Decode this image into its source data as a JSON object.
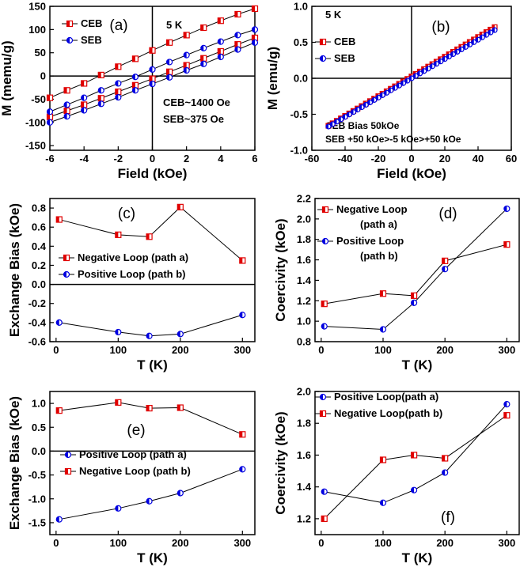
{
  "chart_data": [
    {
      "id": "a",
      "type": "line",
      "panel_label": "(a)",
      "xlabel": "Field (kOe)",
      "ylabel": "M (memu/g)",
      "xlim": [
        -6,
        6
      ],
      "ylim": [
        -160,
        150
      ],
      "xticks": [
        "-6",
        "-4",
        "-2",
        "0",
        "2",
        "4",
        "6"
      ],
      "yticks": [
        "-150",
        "-100",
        "-50",
        "0",
        "50",
        "100",
        "150"
      ],
      "grid": false,
      "legend_position": "top-left",
      "annotations": [
        "5 K",
        "CEB~1400 Oe",
        "SEB~375 Oe"
      ],
      "series": [
        {
          "name": "CEB",
          "color": "#e00000",
          "marker": "square",
          "branches": [
            {
              "x": [
                -6,
                -5,
                -4,
                -3,
                -2,
                -1,
                0,
                1,
                2,
                3,
                4,
                5,
                6
              ],
              "y": [
                -47,
                -31,
                -16,
                2,
                20,
                37,
                55,
                72,
                88,
                104,
                119,
                133,
                145
              ]
            },
            {
              "x": [
                -6,
                -5,
                -4,
                -3,
                -2,
                -1,
                0,
                1,
                2,
                3,
                4,
                5,
                6
              ],
              "y": [
                -88,
                -75,
                -62,
                -48,
                -34,
                -20,
                -6,
                9,
                23,
                38,
                53,
                68,
                82
              ]
            }
          ]
        },
        {
          "name": "SEB",
          "color": "#0000e0",
          "marker": "circle",
          "branches": [
            {
              "x": [
                -6,
                -5,
                -4,
                -3,
                -2,
                -1,
                0,
                1,
                2,
                3,
                4,
                5,
                6
              ],
              "y": [
                -77,
                -62,
                -47,
                -31,
                -16,
                -2,
                14,
                30,
                45,
                60,
                74,
                88,
                100
              ]
            },
            {
              "x": [
                -6,
                -5,
                -4,
                -3,
                -2,
                -1,
                0,
                1,
                2,
                3,
                4,
                5,
                6
              ],
              "y": [
                -100,
                -87,
                -74,
                -60,
                -46,
                -31,
                -17,
                -3,
                12,
                26,
                41,
                57,
                72
              ]
            }
          ]
        }
      ]
    },
    {
      "id": "b",
      "type": "scatter",
      "panel_label": "(b)",
      "xlabel": "Field (kOe)",
      "ylabel": "M (emu/g)",
      "xlim": [
        -60,
        60
      ],
      "ylim": [
        -1.0,
        1.0
      ],
      "xticks": [
        "-60",
        "-40",
        "-20",
        "0",
        "20",
        "40",
        "60"
      ],
      "yticks": [
        "-1.0",
        "-0.5",
        "0.0",
        "0.5",
        "1.0"
      ],
      "grid": false,
      "legend_position": "top-left",
      "annotations": [
        "5 K",
        "CEB Bias 50kOe",
        "SEB +50 kOe>-5 kOe>+50 kOe"
      ],
      "series": [
        {
          "name": "CEB",
          "color": "#e00000",
          "marker": "square",
          "x_range": [
            -50,
            50
          ],
          "y_range": [
            -0.66,
            0.71
          ],
          "points": 41
        },
        {
          "name": "SEB",
          "color": "#0000e0",
          "marker": "circle",
          "x_range": [
            -50,
            50
          ],
          "y_range": [
            -0.67,
            0.67
          ],
          "points": 41
        }
      ]
    },
    {
      "id": "c",
      "type": "line",
      "panel_label": "(c)",
      "xlabel": "T (K)",
      "ylabel": "Exchange Bias (kOe)",
      "xlim": [
        -10,
        320
      ],
      "ylim": [
        -0.6,
        0.9
      ],
      "xticks": [
        "0",
        "100",
        "200",
        "300"
      ],
      "yticks": [
        "-0.6",
        "-0.4",
        "-0.2",
        "0.0",
        "0.2",
        "0.4",
        "0.6",
        "0.8"
      ],
      "grid": false,
      "legend_position": "center-left",
      "series": [
        {
          "name": "Negative Loop (path a)",
          "color": "#e00000",
          "marker": "square",
          "x": [
            5,
            100,
            150,
            200,
            300
          ],
          "y": [
            0.68,
            0.52,
            0.5,
            0.81,
            0.25
          ]
        },
        {
          "name": "Positive Loop (path b)",
          "color": "#0000e0",
          "marker": "circle",
          "x": [
            5,
            100,
            150,
            200,
            300
          ],
          "y": [
            -0.4,
            -0.5,
            -0.54,
            -0.52,
            -0.32
          ]
        }
      ]
    },
    {
      "id": "d",
      "type": "line",
      "panel_label": "(d)",
      "xlabel": "T (K)",
      "ylabel": "Coercivity (kOe)",
      "xlim": [
        -10,
        320
      ],
      "ylim": [
        0.8,
        2.2
      ],
      "xticks": [
        "0",
        "100",
        "200",
        "300"
      ],
      "yticks": [
        "0.8",
        "1.0",
        "1.2",
        "1.4",
        "1.6",
        "1.8",
        "2.0",
        "2.2"
      ],
      "grid": false,
      "legend_position": "top-left",
      "series": [
        {
          "name": "Negative Loop (path a)",
          "legend_lines": [
            "Negative Loop",
            "(path a)"
          ],
          "color": "#e00000",
          "marker": "square",
          "x": [
            5,
            100,
            150,
            200,
            300
          ],
          "y": [
            1.17,
            1.27,
            1.25,
            1.59,
            1.75
          ]
        },
        {
          "name": "Positive Loop (path b)",
          "legend_lines": [
            "Positive Loop",
            "(path b)"
          ],
          "color": "#0000e0",
          "marker": "circle",
          "x": [
            5,
            100,
            150,
            200,
            300
          ],
          "y": [
            0.95,
            0.92,
            1.18,
            1.51,
            2.1
          ]
        }
      ]
    },
    {
      "id": "e",
      "type": "line",
      "panel_label": "(e)",
      "xlabel": "T (K)",
      "ylabel": "Exchange Bias (kOe)",
      "xlim": [
        -10,
        320
      ],
      "ylim": [
        -1.75,
        1.25
      ],
      "xticks": [
        "0",
        "100",
        "200",
        "300"
      ],
      "yticks": [
        "-1.5",
        "-1.0",
        "-0.5",
        "0.0",
        "0.5",
        "1.0"
      ],
      "grid": false,
      "legend_position": "center-left",
      "series": [
        {
          "name": "Positive Loop (path a)",
          "color": "#0000e0",
          "marker": "circle",
          "x": [
            5,
            100,
            150,
            200,
            300
          ],
          "y": [
            -1.43,
            -1.2,
            -1.05,
            -0.88,
            -0.38
          ]
        },
        {
          "name": "Negative Loop (path b)",
          "color": "#e00000",
          "marker": "square",
          "x": [
            5,
            100,
            150,
            200,
            300
          ],
          "y": [
            0.85,
            1.02,
            0.9,
            0.91,
            0.35
          ]
        }
      ]
    },
    {
      "id": "f",
      "type": "line",
      "panel_label": "(f)",
      "xlabel": "T (K)",
      "ylabel": "Coercivity (kOe)",
      "xlim": [
        -10,
        320
      ],
      "ylim": [
        1.1,
        2.0
      ],
      "xticks": [
        "0",
        "100",
        "200",
        "300"
      ],
      "yticks": [
        "1.2",
        "1.4",
        "1.6",
        "1.8",
        "2.0"
      ],
      "grid": false,
      "legend_position": "top-left",
      "series": [
        {
          "name": "Positive Loop(path a)",
          "color": "#0000e0",
          "marker": "circle",
          "x": [
            5,
            100,
            150,
            200,
            300
          ],
          "y": [
            1.37,
            1.3,
            1.38,
            1.49,
            1.92
          ]
        },
        {
          "name": "Negative Loop(path b)",
          "color": "#e00000",
          "marker": "square",
          "x": [
            5,
            100,
            150,
            200,
            300
          ],
          "y": [
            1.2,
            1.57,
            1.6,
            1.58,
            1.85
          ]
        }
      ]
    }
  ]
}
